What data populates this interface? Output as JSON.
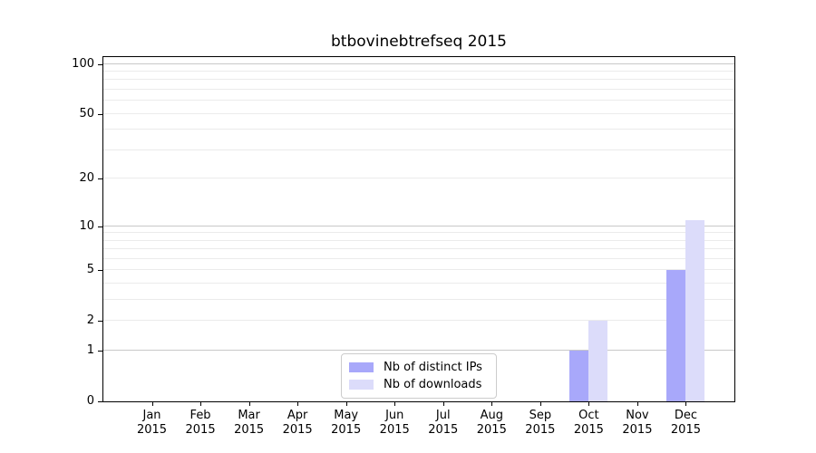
{
  "figure": {
    "title": "btbovinebtrefseq 2015"
  },
  "chart_data": {
    "type": "bar",
    "title": "btbovinebtrefseq 2015",
    "categories": [
      "Jan",
      "Feb",
      "Mar",
      "Apr",
      "May",
      "Jun",
      "Jul",
      "Aug",
      "Sep",
      "Oct",
      "Nov",
      "Dec"
    ],
    "category_year": "2015",
    "series": [
      {
        "name": "Nb of distinct IPs",
        "color": "#a8a8fa",
        "values": [
          0,
          0,
          0,
          0,
          0,
          0,
          0,
          0,
          0,
          1,
          0,
          5
        ]
      },
      {
        "name": "Nb of downloads",
        "color": "#dcdcfa",
        "values": [
          0,
          0,
          0,
          0,
          0,
          0,
          0,
          0,
          0,
          2,
          0,
          11
        ]
      }
    ],
    "xlabel": "",
    "ylabel": "",
    "yscale": "log1p",
    "ylim": [
      0,
      110
    ],
    "yticks": [
      0,
      1,
      2,
      5,
      10,
      20,
      50,
      100
    ],
    "gridline_values": [
      1,
      2,
      3,
      4,
      5,
      6,
      7,
      8,
      9,
      10,
      20,
      30,
      40,
      50,
      60,
      70,
      80,
      90,
      100
    ],
    "major_gridline_values": [
      1,
      10,
      100
    ],
    "grid": "horizontal",
    "legend_position": "lower center",
    "colors": {
      "series_ips": "#a8a8fa",
      "series_downloads": "#dcdcfa",
      "minor_grid": "#ebebeb",
      "major_grid": "#c8c8c8",
      "spine": "#000000",
      "legend_border": "#cccccc",
      "background": "#ffffff"
    }
  }
}
